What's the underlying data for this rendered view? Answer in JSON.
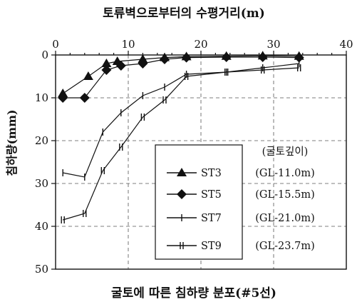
{
  "chart_data": {
    "type": "line",
    "title": "굴토에 따른 침하량 분포(#5선)",
    "xlabel": "토류벽으로부터의 수평거리(m)",
    "ylabel": "침하량(mm)",
    "xlim": [
      0,
      40
    ],
    "ylim": [
      0,
      50
    ],
    "y_inverted": true,
    "x_axis_position": "top",
    "x_ticks": [
      0,
      10,
      20,
      30,
      40
    ],
    "y_ticks": [
      0,
      10,
      20,
      30,
      40,
      50
    ],
    "x_tick_labels": [
      "0",
      "10",
      "20",
      "30",
      "40"
    ],
    "y_tick_labels": [
      "0",
      "10",
      "20",
      "30",
      "40",
      "50"
    ],
    "grid": "dashed",
    "legend": {
      "placement": "bottom-center",
      "header": "(굴토깊이)",
      "entries": [
        {
          "label": "ST3",
          "note": "(GL-11.0m)"
        },
        {
          "label": "ST5",
          "note": "(GL-15.5m)"
        },
        {
          "label": "ST7",
          "note": "(GL-21.0m)"
        },
        {
          "label": "ST9",
          "note": "(GL-23.7m)"
        }
      ]
    },
    "series": [
      {
        "name": "ST3",
        "marker": "triangle",
        "line": "solid",
        "x": [
          1,
          4.5,
          7,
          8.5,
          12,
          15,
          18,
          23.5,
          28.5,
          33.5
        ],
        "y": [
          9,
          5,
          2,
          1.5,
          1,
          0.6,
          0.4,
          0.3,
          0.2,
          0.3
        ]
      },
      {
        "name": "ST5",
        "marker": "diamond",
        "line": "solid",
        "x": [
          1,
          4,
          7,
          9,
          12,
          15,
          18,
          23.5,
          28.5,
          33.5
        ],
        "y": [
          10,
          10,
          3.5,
          2.5,
          2,
          1,
          0.6,
          0.5,
          0.5,
          0.6
        ]
      },
      {
        "name": "ST7",
        "marker": "plus",
        "line": "solid",
        "x": [
          1,
          4,
          6.5,
          9,
          12,
          15,
          18,
          23.5,
          28.5,
          33.5
        ],
        "y": [
          27.5,
          28.5,
          18,
          13.5,
          9.5,
          7.5,
          4.5,
          4,
          3,
          2
        ]
      },
      {
        "name": "ST9",
        "marker": "double-tick",
        "line": "solid",
        "x": [
          1,
          4,
          6.5,
          9,
          12,
          15,
          18,
          23.5,
          28.5,
          33.5
        ],
        "y": [
          38.5,
          37,
          27,
          21.5,
          14.5,
          10.5,
          5,
          4,
          3.5,
          3
        ]
      }
    ]
  }
}
